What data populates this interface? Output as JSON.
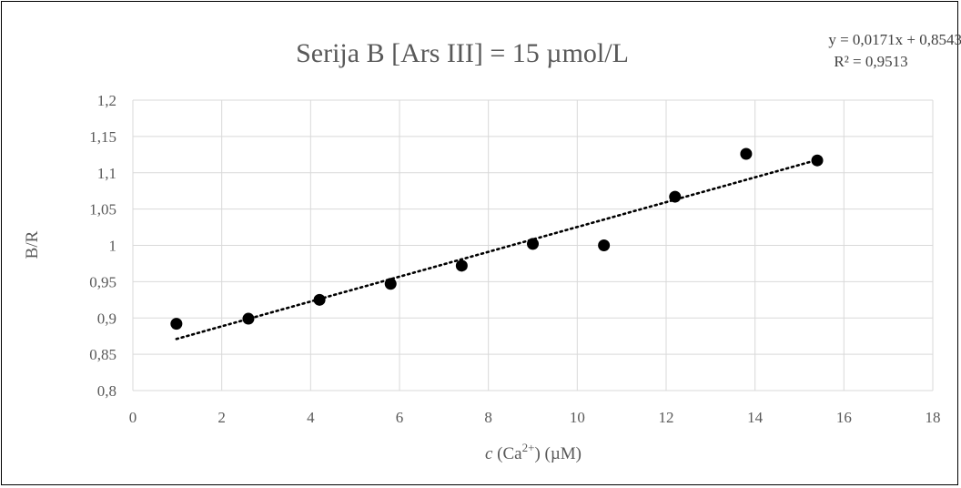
{
  "chart_data": {
    "type": "scatter",
    "title": "Serija B [Ars III] = 15 µmol/L",
    "xlabel": {
      "italic": "c",
      "base": " (Ca",
      "sup": "2+",
      "rest": ") (µM)"
    },
    "ylabel": "B/R",
    "xlim": [
      0,
      18
    ],
    "ylim": [
      0.8,
      1.2
    ],
    "x_ticks": [
      0,
      2,
      4,
      6,
      8,
      10,
      12,
      14,
      16,
      18
    ],
    "y_ticks": [
      0.8,
      0.85,
      0.9,
      0.95,
      1,
      1.05,
      1.1,
      1.15,
      1.2
    ],
    "x_tick_labels": [
      "0",
      "2",
      "4",
      "6",
      "8",
      "10",
      "12",
      "14",
      "16",
      "18"
    ],
    "y_tick_labels": [
      "0,8",
      "0,85",
      "0,9",
      "0,95",
      "1",
      "1,05",
      "1,1",
      "1,15",
      "1,2"
    ],
    "grid": true,
    "points": [
      {
        "x": 0.98,
        "y": 0.892
      },
      {
        "x": 2.6,
        "y": 0.899
      },
      {
        "x": 4.2,
        "y": 0.925
      },
      {
        "x": 5.8,
        "y": 0.947
      },
      {
        "x": 7.4,
        "y": 0.972
      },
      {
        "x": 9.0,
        "y": 1.002
      },
      {
        "x": 10.6,
        "y": 1.0
      },
      {
        "x": 12.2,
        "y": 1.067
      },
      {
        "x": 13.8,
        "y": 1.126
      },
      {
        "x": 15.4,
        "y": 1.117
      }
    ],
    "trendline": {
      "slope": 0.0171,
      "intercept": 0.8543,
      "x_range": [
        0.98,
        15.4
      ],
      "equation": "y = 0,0171x + 0,8543",
      "r_squared": "R² = 0,9513"
    },
    "colors": {
      "point": "#000000",
      "grid": "#d9d9d9",
      "text": "#595959",
      "trend": "#000000"
    }
  }
}
